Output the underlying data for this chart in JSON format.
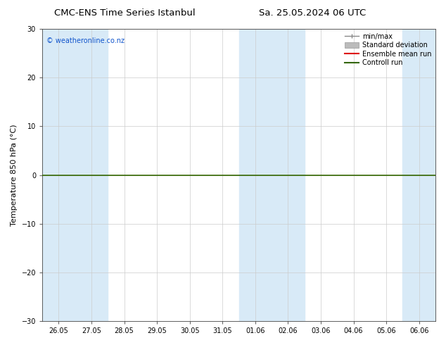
{
  "title_left": "CMC-ENS Time Series Istanbul",
  "title_right": "Sa. 25.05.2024 06 UTC",
  "ylabel": "Temperature 850 hPa (°C)",
  "ylim": [
    -30,
    30
  ],
  "yticks": [
    -30,
    -20,
    -10,
    0,
    10,
    20,
    30
  ],
  "x_labels": [
    "26.05",
    "27.05",
    "28.05",
    "29.05",
    "30.05",
    "31.05",
    "01.06",
    "02.06",
    "03.06",
    "04.06",
    "05.06",
    "06.06"
  ],
  "x_values": [
    0,
    1,
    2,
    3,
    4,
    5,
    6,
    7,
    8,
    9,
    10,
    11
  ],
  "background_color": "#ffffff",
  "plot_bg_color": "#ffffff",
  "shaded_cols": [
    0,
    1,
    6,
    7,
    11
  ],
  "shaded_color": "#d8eaf7",
  "grid_color": "#cccccc",
  "watermark": "© weatheronline.co.nz",
  "watermark_color": "#1155cc",
  "zero_line_color": "#336600",
  "zero_line_y": 0,
  "title_fontsize": 9.5,
  "tick_fontsize": 7,
  "ylabel_fontsize": 8,
  "legend_minmax_color": "#888888",
  "legend_std_color": "#bbbbbb",
  "legend_ens_color": "#dd0000",
  "legend_ctrl_color": "#336600"
}
